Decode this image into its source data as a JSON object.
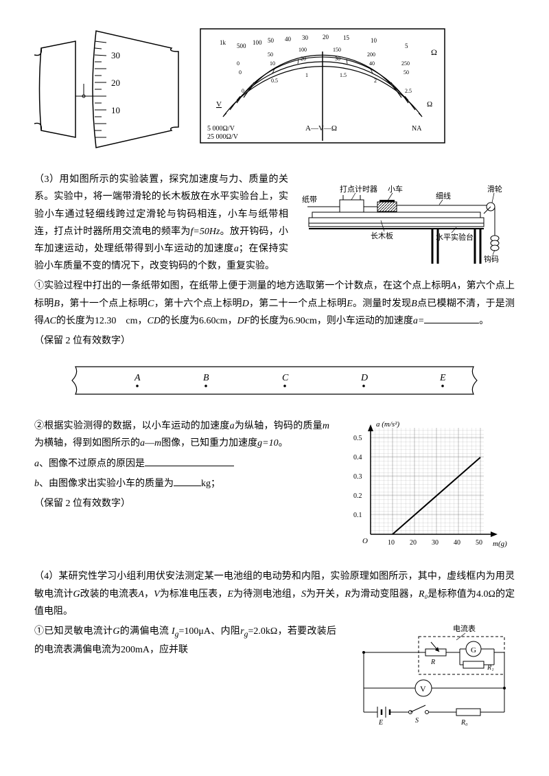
{
  "micrometer": {
    "ticks": [
      "30",
      "20",
      "10"
    ]
  },
  "multimeter": {
    "units_left_top": "1k",
    "ohm_symbol": "Ω",
    "scale_top": [
      "500",
      "100",
      "50",
      "40",
      "30",
      "20",
      "15",
      "10",
      "5"
    ],
    "scale_mid_top": [
      "0",
      "50",
      "100",
      "150",
      "200",
      "250"
    ],
    "scale_mid": [
      "0",
      "10",
      "20",
      "30",
      "40",
      "50"
    ],
    "scale_bot": [
      "0",
      "0.5",
      "1",
      "1.5",
      "2",
      "2.5"
    ],
    "left_label": "V",
    "av_ohm": "A―V―Ω",
    "na": "NA",
    "range1": "5 000Ω/V",
    "range2": "25 000Ω/V"
  },
  "q3": {
    "intro": "（3）用如图所示的实验装置，探究加速度与力、质量的关系。实验中，将一端带滑轮的长木板放在水平实验台上，实验小车通过轻细线跨过定滑轮与钩码相连，小车与纸带相连，打点计时器所用交流电的频率为",
    "freq": "f=50Hz",
    "intro2": "。放开钩码，小车加速运动，处理纸带得到小车运动的加速度",
    "a_var": "a",
    "intro3": "；在保持实验小车质量不变的情况下，改变钩码的个数，重复实验。",
    "apparatus": {
      "timer": "打点计时器",
      "cart": "小车",
      "string": "细线",
      "pulley": "滑轮",
      "tape": "纸带",
      "board": "长木板",
      "table": "水平实验台",
      "weight": "钩码"
    },
    "part1_a": "①实验过程中打出的一条纸带如图，在纸带上便于测量的地方选取第一个计数点，在这个点上标明",
    "A": "A",
    "part1_b": "，第六个点上标明",
    "B": "B",
    "part1_c": "，第十一个点上标明",
    "C": "C",
    "part1_d": "，第十六个点上标明",
    "D": "D",
    "part1_e": "，第二十一个点上标明",
    "E": "E",
    "part1_f": "。测量时发现",
    "part1_g": "点已模糊不清，于是测得",
    "AC": "AC",
    "part1_h": "的长度为",
    "AC_val": "12.30",
    "cm": "cm",
    "part1_i": "，",
    "CD": "CD",
    "part1_j": "的长度为",
    "CD_val": "6.60cm",
    "DF": "DF",
    "part1_k": "的长度为",
    "DF_val": "6.90cm",
    "part1_l": "，则小车运动的加速度",
    "a_eq": "a=",
    "part1_m": "。",
    "keep": "（保留 2 位有效数字）",
    "tape_labels": [
      "A",
      "B",
      "C",
      "D",
      "E"
    ],
    "part2_a": "②根据实验测得的数据，以小车运动的加速度",
    "part2_b": "为纵轴，钩码的质量",
    "m_var": "m",
    "part2_c": "为横轴，得到如图所示的",
    "am": "a―m",
    "part2_d": "图像，已知重力加速度",
    "g_eq": "g=10",
    "part2_e": "。",
    "qa": "a",
    "qa_text": "、图像不过原点的原因是",
    "qb": "b",
    "qb_text": "、由图像求出实验小车的质量为",
    "kg": "kg",
    "chart": {
      "ylabel": "a (m/s²)",
      "xlabel": "m(g)",
      "yticks": [
        "0.1",
        "0.2",
        "0.3",
        "0.4",
        "0.5"
      ],
      "xticks": [
        "10",
        "20",
        "30",
        "40",
        "50"
      ],
      "origin": "O",
      "line_x1": 10,
      "line_y1": 0,
      "line_x2": 50,
      "line_y2": 0.4,
      "ylim": 0.55,
      "xlim": 55,
      "grid_color": "#000",
      "line_color": "#000",
      "bg": "#fff"
    }
  },
  "q4": {
    "intro": "（4）某研究性学习小组利用伏安法测定某一电池组的电动势和内阻，实验原理如图所示，其中，虚线框内为用灵敏电流计",
    "G": "G",
    "intro2": "改装的电流表",
    "A": "A",
    "intro3": "，",
    "V": "V",
    "intro4": "为标准电压表，",
    "E": "E",
    "intro5": "为待测电池组，",
    "S": "S",
    "intro6": "为开关，",
    "R": "R",
    "intro7": "为滑动变阻器，",
    "R0": "R₀",
    "intro8": "是标称值为",
    "R0_val": "4.0Ω",
    "intro9": "的定值电阻。",
    "part1_a": "①已知灵敏电流计",
    "part1_b": "的满偏电流",
    "Ig": "I",
    "Ig_sub": "g",
    "Ig_val": "=100μA",
    "part1_c": "、内阻",
    "rg": "r",
    "rg_sub": "g",
    "rg_val": "=2.0kΩ",
    "part1_d": "，若要改装后的电流表满偏电流为",
    "full": "200mA",
    "part1_e": "，应并联",
    "circuit": {
      "ammeter": "电流表",
      "G": "G",
      "R": "R",
      "R1": "R₁",
      "V": "V",
      "E": "E",
      "S": "S",
      "R0": "R₀"
    }
  }
}
